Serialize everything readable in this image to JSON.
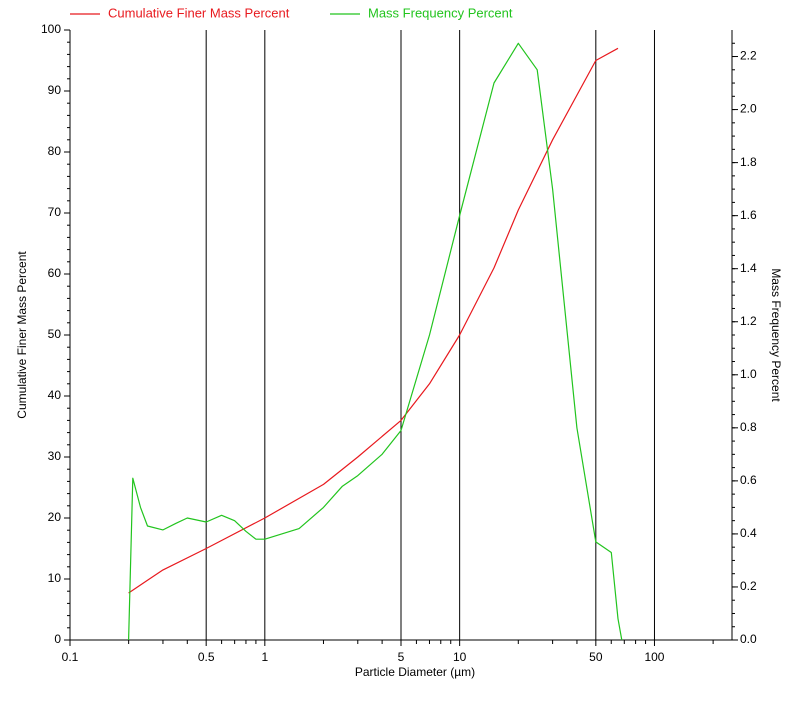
{
  "chart_data": {
    "type": "line",
    "x_label": "Particle Diameter (µm)",
    "y_label": "Cumulative Finer Mass Percent",
    "y2_label": "Mass Frequency Percent",
    "x_log": true,
    "xlim": [
      0.1,
      250
    ],
    "xticks": [
      0.1,
      0.5,
      1,
      5,
      10,
      50,
      100
    ],
    "xminorticks": [
      0.2,
      0.3,
      0.4,
      0.6,
      0.7,
      0.8,
      0.9,
      2,
      3,
      4,
      6,
      7,
      8,
      9,
      20,
      30,
      40,
      60,
      70,
      80,
      90,
      200
    ],
    "x_grid": [
      0.5,
      1,
      5,
      10,
      50,
      100
    ],
    "ylim": [
      0,
      100
    ],
    "yticks": [
      0,
      10,
      20,
      30,
      40,
      50,
      60,
      70,
      80,
      90,
      100
    ],
    "yminor_step": 2,
    "y2lim": [
      0,
      2.3
    ],
    "y2ticks": [
      {
        "value": 0,
        "label": "0.0"
      },
      0.2,
      0.4,
      0.6,
      0.8,
      {
        "value": 1,
        "label": "1.0"
      },
      1.2,
      1.4,
      1.6,
      1.8,
      {
        "value": 2,
        "label": "2.0"
      },
      2.2
    ],
    "y2minor_step": 0.05,
    "legend": "top-left",
    "series": [
      {
        "name": "Cumulative Finer Mass Percent",
        "color": "#e8191e",
        "x": [
          0.2,
          0.25,
          0.3,
          0.5,
          1,
          2,
          3,
          5,
          7,
          10,
          15,
          20,
          30,
          50,
          65
        ],
        "values": [
          7.7,
          9.8,
          11.5,
          15,
          20,
          25.5,
          30,
          36,
          42,
          50,
          61,
          70.5,
          82,
          95,
          97
        ]
      },
      {
        "name": "Mass Frequency Percent",
        "color": "#22c41e",
        "axis": "y2",
        "x": [
          0.2,
          0.21,
          0.23,
          0.25,
          0.3,
          0.35,
          0.4,
          0.5,
          0.6,
          0.7,
          0.8,
          0.9,
          1,
          1.5,
          2,
          2.5,
          3,
          4,
          5,
          7,
          10,
          15,
          20,
          25,
          30,
          40,
          50,
          60,
          65,
          68
        ],
        "values": [
          0,
          0.61,
          0.5,
          0.43,
          0.415,
          0.44,
          0.46,
          0.445,
          0.47,
          0.45,
          0.41,
          0.38,
          0.38,
          0.42,
          0.5,
          0.58,
          0.62,
          0.7,
          0.79,
          1.15,
          1.6,
          2.1,
          2.25,
          2.15,
          1.7,
          0.8,
          0.37,
          0.33,
          0.08,
          0
        ]
      }
    ]
  }
}
